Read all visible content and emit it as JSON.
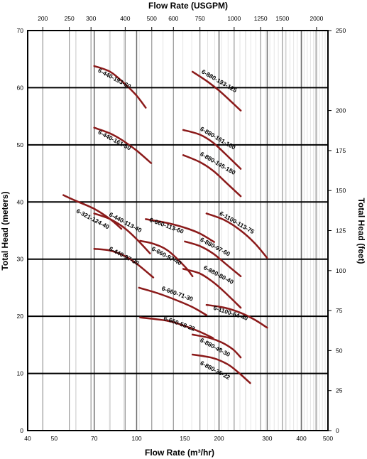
{
  "chart_data": {
    "type": "line",
    "xlabel": "Flow Rate (m³/hr)",
    "ylabel": "Total Head (meters)",
    "x2label": "Flow Rate (USGPM)",
    "y2label": "Total Head (feet)",
    "x_scale": "log",
    "xlim": [
      40,
      500
    ],
    "ylim": [
      0,
      70
    ],
    "y2lim": [
      0,
      250
    ],
    "x_ticks": [
      40,
      50,
      70,
      100,
      150,
      200,
      300,
      400,
      500
    ],
    "y_ticks": [
      0,
      10,
      20,
      30,
      40,
      50,
      60,
      70
    ],
    "x2_ticks": [
      200,
      250,
      300,
      400,
      500,
      600,
      750,
      1000,
      1250,
      1500,
      2000
    ],
    "y2_ticks": [
      0,
      25,
      50,
      75,
      100,
      125,
      150,
      175,
      200,
      250
    ],
    "grid": true,
    "curve_color": "#8b1a1a",
    "series": [
      {
        "name": "6-440-193-60",
        "points": [
          [
            70,
            63.8
          ],
          [
            80,
            62.8
          ],
          [
            90,
            60.8
          ],
          [
            100,
            58.6
          ],
          [
            108,
            56.5
          ]
        ]
      },
      {
        "name": "6-440-161-50",
        "points": [
          [
            70,
            53.0
          ],
          [
            80,
            52.0
          ],
          [
            90,
            50.6
          ],
          [
            100,
            49.0
          ],
          [
            113,
            46.8
          ]
        ]
      },
      {
        "name": "6-321-124-40",
        "points": [
          [
            54,
            41.2
          ],
          [
            60,
            40.2
          ],
          [
            70,
            38.8
          ],
          [
            80,
            37.0
          ],
          [
            88,
            35.3
          ]
        ]
      },
      {
        "name": "6-440-113-40",
        "points": [
          [
            70,
            38.0
          ],
          [
            80,
            37.0
          ],
          [
            90,
            35.5
          ],
          [
            100,
            33.5
          ],
          [
            112,
            31.0
          ]
        ]
      },
      {
        "name": "6-440-97-30",
        "points": [
          [
            70,
            31.8
          ],
          [
            80,
            31.5
          ],
          [
            90,
            30.6
          ],
          [
            100,
            29.2
          ],
          [
            115,
            26.8
          ]
        ]
      },
      {
        "name": "6-660-113-60",
        "points": [
          [
            108,
            37.0
          ],
          [
            130,
            36.3
          ],
          [
            150,
            35.5
          ],
          [
            170,
            34.5
          ],
          [
            192,
            33.0
          ]
        ]
      },
      {
        "name": "6-660-97-40",
        "points": [
          [
            103,
            33.2
          ],
          [
            115,
            32.7
          ],
          [
            130,
            31.5
          ],
          [
            150,
            28.7
          ],
          [
            160,
            27.0
          ]
        ]
      },
      {
        "name": "6-660-71-30",
        "points": [
          [
            102,
            25.0
          ],
          [
            120,
            24.0
          ],
          [
            140,
            22.8
          ],
          [
            160,
            21.6
          ],
          [
            180,
            20.2
          ]
        ]
      },
      {
        "name": "6-660-58-22",
        "points": [
          [
            103,
            19.8
          ],
          [
            130,
            19.2
          ],
          [
            150,
            18.3
          ],
          [
            170,
            17.3
          ],
          [
            190,
            16.2
          ]
        ]
      },
      {
        "name": "6-880-193-125",
        "points": [
          [
            160,
            62.8
          ],
          [
            180,
            61.2
          ],
          [
            200,
            59.5
          ],
          [
            220,
            57.7
          ],
          [
            240,
            56.0
          ]
        ]
      },
      {
        "name": "6-880-161-100",
        "points": [
          [
            148,
            52.6
          ],
          [
            170,
            51.8
          ],
          [
            190,
            50.4
          ],
          [
            210,
            48.5
          ],
          [
            240,
            45.8
          ]
        ]
      },
      {
        "name": "6-880-145-180",
        "points": [
          [
            148,
            48.2
          ],
          [
            170,
            47.0
          ],
          [
            190,
            45.5
          ],
          [
            210,
            43.6
          ],
          [
            240,
            41.0
          ]
        ]
      },
      {
        "name": "6-880-97-60",
        "points": [
          [
            150,
            33.1
          ],
          [
            170,
            32.3
          ],
          [
            190,
            31.0
          ],
          [
            210,
            29.3
          ],
          [
            240,
            27.0
          ]
        ]
      },
      {
        "name": "6-880-80-40",
        "points": [
          [
            148,
            28.3
          ],
          [
            170,
            27.5
          ],
          [
            190,
            26.0
          ],
          [
            210,
            24.2
          ],
          [
            240,
            21.5
          ]
        ]
      },
      {
        "name": "6-1100-113-75",
        "points": [
          [
            180,
            38.0
          ],
          [
            210,
            36.8
          ],
          [
            240,
            35.0
          ],
          [
            270,
            32.8
          ],
          [
            300,
            30.2
          ]
        ]
      },
      {
        "name": "6-1100-64-40",
        "points": [
          [
            180,
            22.0
          ],
          [
            210,
            21.5
          ],
          [
            240,
            20.6
          ],
          [
            270,
            19.4
          ],
          [
            300,
            18.0
          ]
        ]
      },
      {
        "name": "6-880-48-30",
        "points": [
          [
            160,
            16.8
          ],
          [
            185,
            16.2
          ],
          [
            205,
            15.4
          ],
          [
            225,
            14.2
          ],
          [
            240,
            12.8
          ]
        ]
      },
      {
        "name": "6-880-35-22",
        "points": [
          [
            160,
            13.3
          ],
          [
            190,
            12.7
          ],
          [
            215,
            11.6
          ],
          [
            235,
            10.2
          ],
          [
            260,
            8.3
          ]
        ]
      }
    ],
    "labels": [
      {
        "text": "6-440-193-60",
        "x": 72,
        "y": 62.8,
        "rot": 28
      },
      {
        "text": "6-440-161-50",
        "x": 72,
        "y": 52.0,
        "rot": 28
      },
      {
        "text": "6-321-124-40",
        "x": 60,
        "y": 38.2,
        "rot": 28
      },
      {
        "text": "6-440-113-40",
        "x": 79,
        "y": 37.6,
        "rot": 28
      },
      {
        "text": "6-440-97-30",
        "x": 79,
        "y": 31.6,
        "rot": 28
      },
      {
        "text": "6-660-113-60",
        "x": 111,
        "y": 36.6,
        "rot": 20
      },
      {
        "text": "6-660-97-40",
        "x": 113,
        "y": 31.6,
        "rot": 28
      },
      {
        "text": "6-660-71-30",
        "x": 123,
        "y": 24.6,
        "rot": 20
      },
      {
        "text": "6-660-58-22",
        "x": 125,
        "y": 19.4,
        "rot": 20
      },
      {
        "text": "6-880-193-125",
        "x": 172,
        "y": 62.6,
        "rot": 30
      },
      {
        "text": "6-880-161-100",
        "x": 170,
        "y": 52.6,
        "rot": 30
      },
      {
        "text": "6-880-145-180",
        "x": 170,
        "y": 48.2,
        "rot": 30
      },
      {
        "text": "6-880-97-60",
        "x": 170,
        "y": 33.2,
        "rot": 28
      },
      {
        "text": "6-880-80-40",
        "x": 175,
        "y": 28.3,
        "rot": 28
      },
      {
        "text": "6-1100-113-75",
        "x": 200,
        "y": 37.8,
        "rot": 30
      },
      {
        "text": "6-1100-64-40",
        "x": 190,
        "y": 21.2,
        "rot": 18
      },
      {
        "text": "6-880-48-30",
        "x": 170,
        "y": 15.6,
        "rot": 28
      },
      {
        "text": "6-880-35-22",
        "x": 170,
        "y": 11.6,
        "rot": 28
      }
    ]
  }
}
